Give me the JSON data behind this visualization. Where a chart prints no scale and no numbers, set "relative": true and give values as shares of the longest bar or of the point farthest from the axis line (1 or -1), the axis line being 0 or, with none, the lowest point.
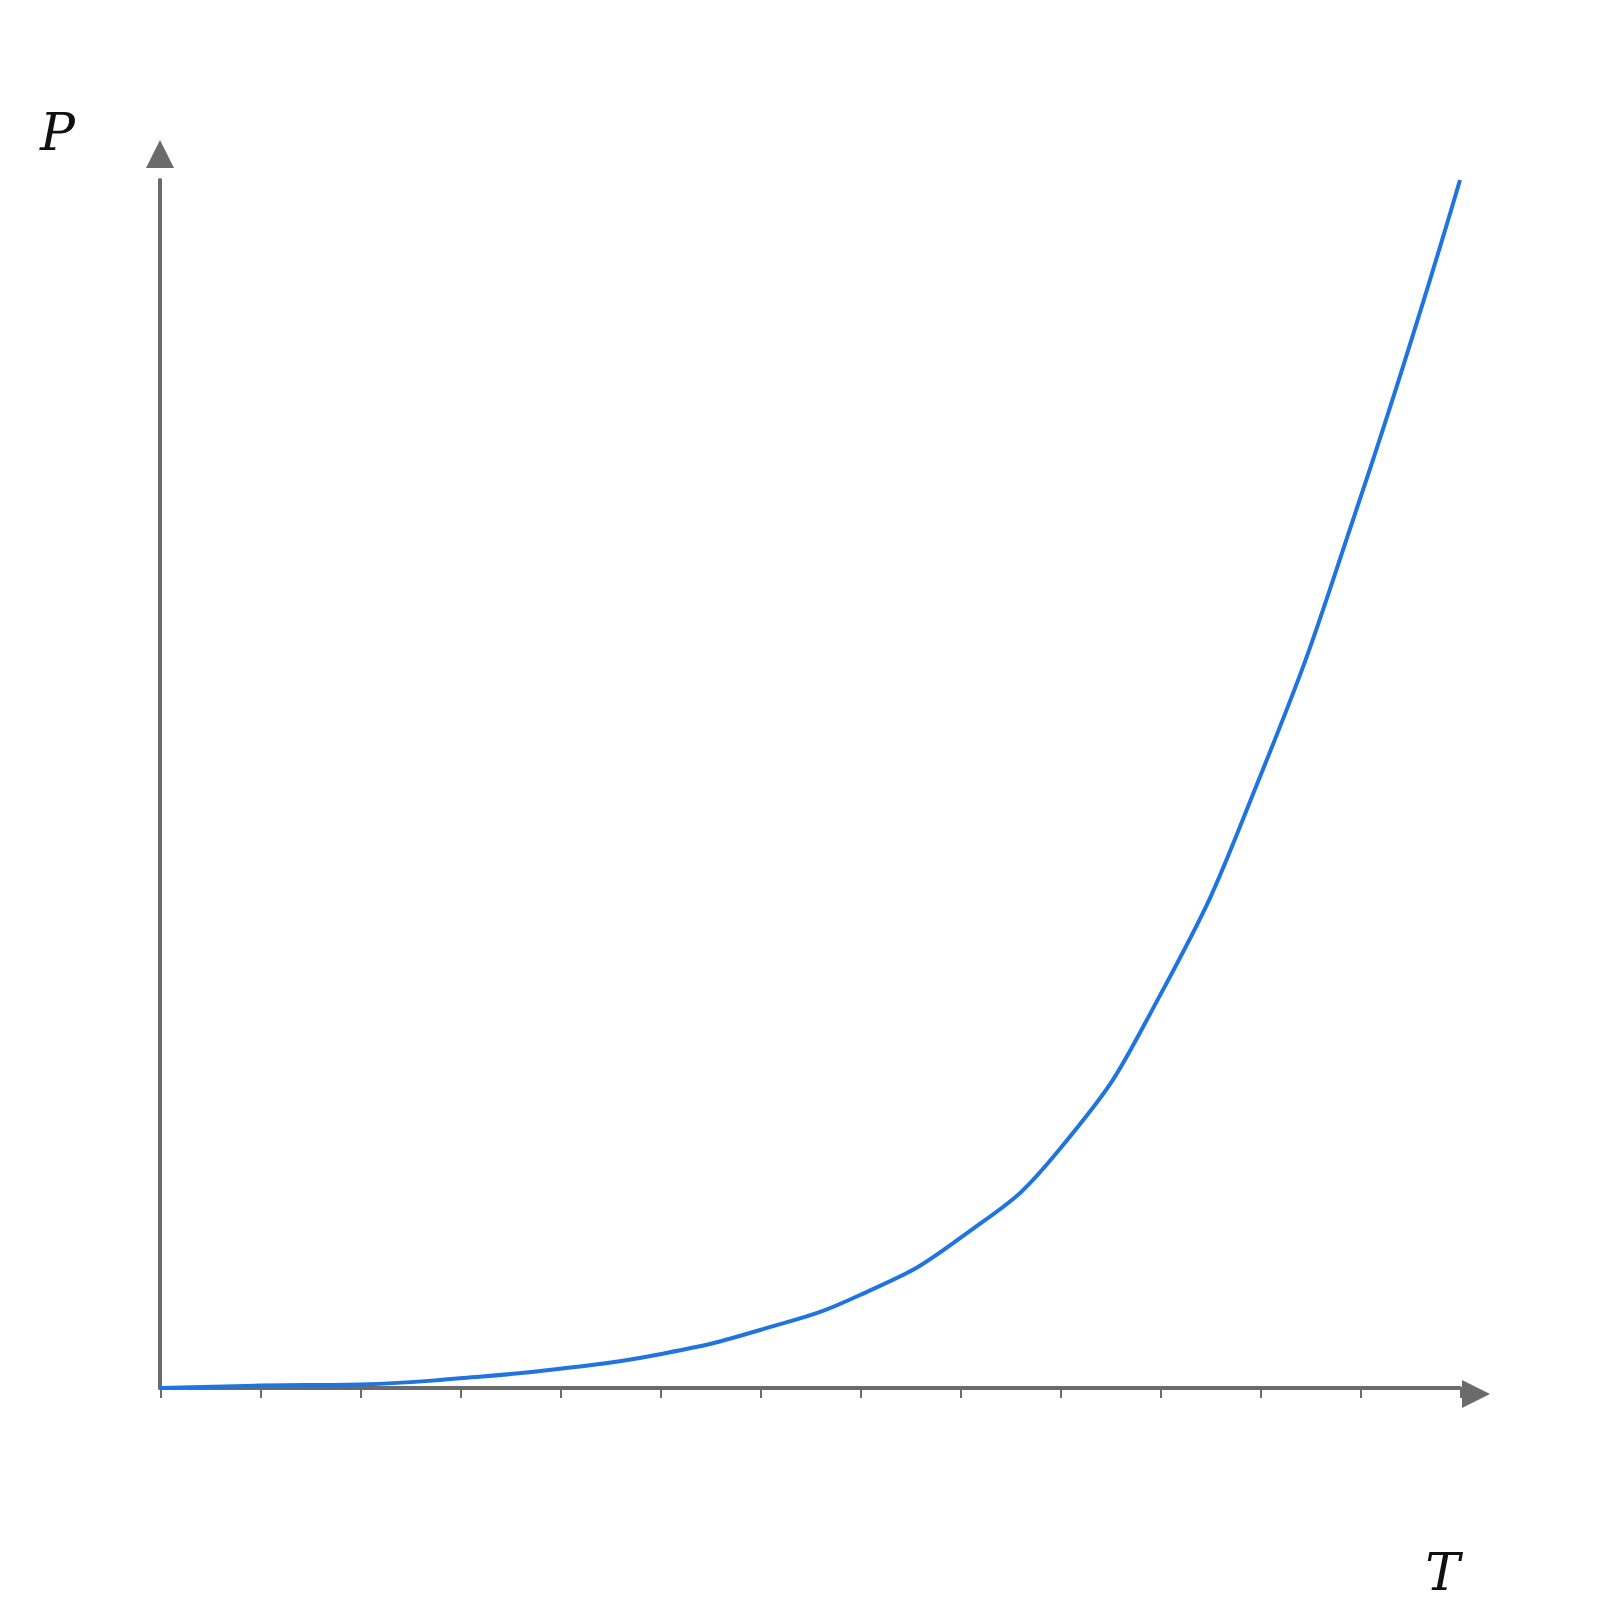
{
  "chart_data": {
    "type": "line",
    "xlabel": "T",
    "ylabel": "P",
    "relative": true,
    "grid": false,
    "marker": "none",
    "line_style": "solid",
    "categories": [
      null,
      null,
      null,
      null,
      null,
      null,
      null,
      null,
      null,
      null,
      null,
      null,
      null,
      null
    ],
    "series": [
      {
        "color": "#1f74e0",
        "values": [
          0,
          0.002,
          0.003,
          0.008,
          0.016,
          0.028,
          0.048,
          0.077,
          0.124,
          0.198,
          0.325,
          0.506,
          0.736,
          1
        ]
      }
    ]
  }
}
